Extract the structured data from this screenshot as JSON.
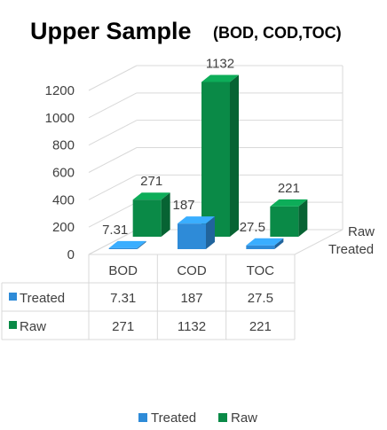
{
  "chart_data": {
    "type": "bar",
    "title": "Upper Sample",
    "subtitle": "(BOD, COD,TOC)",
    "categories": [
      "BOD",
      "COD",
      "TOC"
    ],
    "series": [
      {
        "name": "Treated",
        "values": [
          7.31,
          187,
          27.5
        ],
        "labels": [
          "7.31",
          "187",
          "27.5"
        ],
        "color": "#2E8BD8"
      },
      {
        "name": "Raw",
        "values": [
          271,
          1132,
          221
        ],
        "labels": [
          "271",
          "1132",
          "221"
        ],
        "color": "#0A8A47"
      }
    ],
    "ylim": [
      0,
      1200
    ],
    "yticks": [
      "0",
      "200",
      "400",
      "600",
      "800",
      "1000",
      "1200"
    ],
    "grid": true,
    "legend_position": "bottom",
    "has_data_table": true,
    "chart_style": "3D clustered column"
  }
}
